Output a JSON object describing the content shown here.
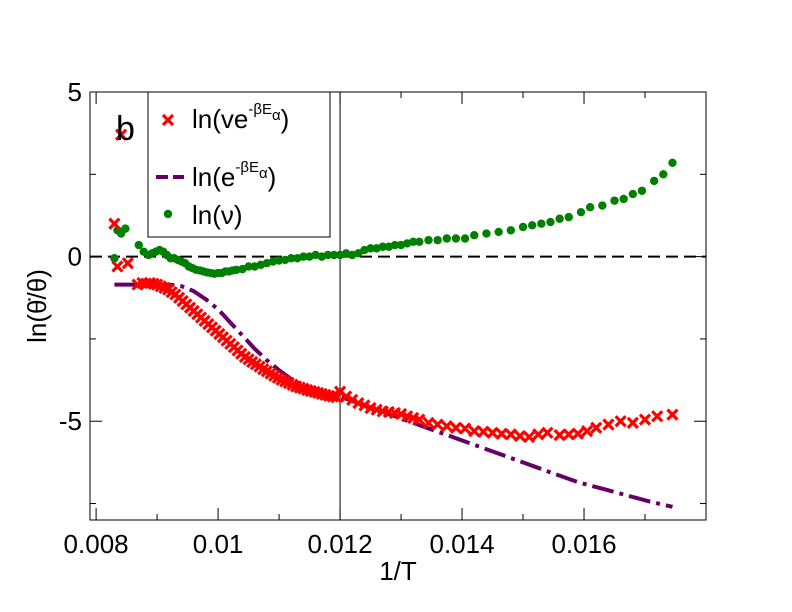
{
  "chart_data": {
    "type": "scatter",
    "panel_label": "b",
    "xlabel": "1/T",
    "ylabel": "ln(θ̇/θ)",
    "xlim": [
      0.0079,
      0.018
    ],
    "ylim": [
      -8,
      5
    ],
    "xticks": [
      0.008,
      0.01,
      0.012,
      0.014,
      0.016
    ],
    "xtick_labels": [
      "0.008",
      "0.01",
      "0.012",
      "0.014",
      "0.016"
    ],
    "yticks": [
      -5,
      0,
      5
    ],
    "ytick_labels": [
      "-5",
      "0",
      "5"
    ],
    "reference_lines": {
      "horizontal_y": 0,
      "vertical_x": 0.012
    },
    "legend": {
      "placement": "top-left",
      "entries": [
        {
          "series": "ln_nu_exp",
          "prefix": "ln(ve",
          "sup": "-βE",
          "sub": "α",
          "suffix": ")"
        },
        {
          "series": "ln_exp",
          "prefix": "ln(e",
          "sup": "-βE",
          "sub": "α",
          "suffix": ")"
        },
        {
          "series": "ln_nu",
          "prefix": "ln(ν)",
          "sup": "",
          "sub": "",
          "suffix": ""
        }
      ]
    },
    "series": [
      {
        "id": "ln_nu_exp",
        "name": "ln(νe^-βEα)",
        "marker": "x",
        "color": "#ff0000",
        "x": [
          0.0083,
          0.00835,
          0.00841,
          0.00852,
          0.00868,
          0.00876,
          0.00882,
          0.00888,
          0.00894,
          0.009,
          0.00906,
          0.00912,
          0.00918,
          0.00924,
          0.0093,
          0.00936,
          0.00942,
          0.00948,
          0.00954,
          0.0096,
          0.00966,
          0.00972,
          0.00978,
          0.00984,
          0.0099,
          0.00996,
          0.01002,
          0.01008,
          0.01014,
          0.0102,
          0.01026,
          0.01032,
          0.01038,
          0.01044,
          0.0105,
          0.01056,
          0.01062,
          0.01068,
          0.01074,
          0.0108,
          0.01086,
          0.01092,
          0.01098,
          0.01104,
          0.0111,
          0.01116,
          0.01122,
          0.01128,
          0.01134,
          0.0114,
          0.01146,
          0.01152,
          0.01158,
          0.01164,
          0.0117,
          0.01176,
          0.01182,
          0.01188,
          0.01194,
          0.012,
          0.0121,
          0.0122,
          0.0123,
          0.0124,
          0.0125,
          0.0126,
          0.0127,
          0.0128,
          0.0129,
          0.013,
          0.0131,
          0.0132,
          0.0133,
          0.01345,
          0.0136,
          0.01375,
          0.0139,
          0.01405,
          0.0142,
          0.01435,
          0.0145,
          0.01465,
          0.0148,
          0.01495,
          0.0151,
          0.01525,
          0.0154,
          0.0156,
          0.01575,
          0.0159,
          0.01605,
          0.0162,
          0.0164,
          0.0166,
          0.0168,
          0.017,
          0.0172,
          0.01745
        ],
        "y": [
          1.0,
          -0.3,
          3.7,
          -0.2,
          -0.85,
          -0.8,
          -0.82,
          -0.8,
          -0.82,
          -0.85,
          -0.9,
          -0.95,
          -1.0,
          -1.08,
          -1.15,
          -1.25,
          -1.35,
          -1.45,
          -1.55,
          -1.65,
          -1.75,
          -1.85,
          -1.95,
          -2.05,
          -2.15,
          -2.25,
          -2.35,
          -2.45,
          -2.55,
          -2.65,
          -2.75,
          -2.85,
          -2.95,
          -3.05,
          -3.12,
          -3.2,
          -3.27,
          -3.34,
          -3.42,
          -3.48,
          -3.55,
          -3.62,
          -3.68,
          -3.74,
          -3.79,
          -3.84,
          -3.89,
          -3.94,
          -3.98,
          -4.01,
          -4.05,
          -4.08,
          -4.11,
          -4.14,
          -4.17,
          -4.2,
          -4.23,
          -4.25,
          -4.27,
          -4.1,
          -4.25,
          -4.35,
          -4.45,
          -4.52,
          -4.6,
          -4.65,
          -4.7,
          -4.72,
          -4.75,
          -4.78,
          -4.85,
          -4.9,
          -4.95,
          -5.05,
          -5.1,
          -5.15,
          -5.2,
          -5.22,
          -5.3,
          -5.32,
          -5.35,
          -5.38,
          -5.4,
          -5.45,
          -5.48,
          -5.4,
          -5.35,
          -5.42,
          -5.4,
          -5.38,
          -5.3,
          -5.2,
          -5.1,
          -5.0,
          -5.05,
          -4.95,
          -4.85,
          -4.8
        ]
      },
      {
        "id": "ln_exp",
        "name": "ln(e^-βEα)",
        "marker": "dash-dot line",
        "color": "#660066",
        "x": [
          0.0083,
          0.0085,
          0.0087,
          0.0088,
          0.009,
          0.0092,
          0.0094,
          0.0096,
          0.0098,
          0.01,
          0.0102,
          0.0104,
          0.0106,
          0.0108,
          0.011,
          0.0112,
          0.0114,
          0.0116,
          0.0118,
          0.012,
          0.0123,
          0.0126,
          0.0129,
          0.0132,
          0.0135,
          0.0138,
          0.0141,
          0.0144,
          0.0147,
          0.015,
          0.0153,
          0.0156,
          0.0159,
          0.0162,
          0.0165,
          0.0168,
          0.0171,
          0.01745
        ],
        "y": [
          -0.85,
          -0.85,
          -0.85,
          -0.85,
          -0.85,
          -0.85,
          -0.9,
          -1.05,
          -1.3,
          -1.6,
          -2.0,
          -2.4,
          -2.8,
          -3.15,
          -3.45,
          -3.72,
          -3.93,
          -4.05,
          -4.15,
          -4.25,
          -4.45,
          -4.65,
          -4.85,
          -5.05,
          -5.25,
          -5.45,
          -5.65,
          -5.85,
          -6.05,
          -6.25,
          -6.45,
          -6.65,
          -6.85,
          -7.0,
          -7.15,
          -7.3,
          -7.45,
          -7.6
        ]
      },
      {
        "id": "ln_nu",
        "name": "ln(ν)",
        "marker": "circle",
        "color": "#008000",
        "x": [
          0.0083,
          0.00835,
          0.00841,
          0.00848,
          0.0087,
          0.00878,
          0.00886,
          0.00892,
          0.00898,
          0.00904,
          0.0091,
          0.00916,
          0.00922,
          0.00928,
          0.00934,
          0.0094,
          0.00946,
          0.00952,
          0.00958,
          0.00964,
          0.0097,
          0.00976,
          0.00982,
          0.00988,
          0.00994,
          0.01,
          0.01006,
          0.01012,
          0.01018,
          0.01024,
          0.0103,
          0.0104,
          0.0105,
          0.0106,
          0.0107,
          0.0108,
          0.0109,
          0.011,
          0.0111,
          0.0112,
          0.0113,
          0.0114,
          0.0115,
          0.0116,
          0.0117,
          0.0118,
          0.0119,
          0.012,
          0.0121,
          0.0122,
          0.0123,
          0.0124,
          0.0125,
          0.0126,
          0.0127,
          0.0128,
          0.0129,
          0.013,
          0.0131,
          0.0132,
          0.0133,
          0.01345,
          0.0136,
          0.01375,
          0.0139,
          0.01405,
          0.0142,
          0.0144,
          0.0146,
          0.0148,
          0.015,
          0.01515,
          0.0153,
          0.01545,
          0.0156,
          0.01575,
          0.01595,
          0.0161,
          0.0163,
          0.0165,
          0.01665,
          0.0168,
          0.01695,
          0.01715,
          0.0173,
          0.01745
        ],
        "y": [
          -0.05,
          0.8,
          0.7,
          0.85,
          0.35,
          0.15,
          0.05,
          0.1,
          0.15,
          0.2,
          0.15,
          0.05,
          -0.05,
          -0.05,
          -0.1,
          -0.15,
          -0.2,
          -0.3,
          -0.35,
          -0.4,
          -0.42,
          -0.45,
          -0.48,
          -0.5,
          -0.52,
          -0.5,
          -0.5,
          -0.45,
          -0.45,
          -0.42,
          -0.4,
          -0.38,
          -0.3,
          -0.3,
          -0.25,
          -0.2,
          -0.15,
          -0.12,
          -0.1,
          -0.05,
          -0.05,
          0.0,
          0.0,
          0.05,
          0.0,
          0.05,
          0.05,
          0.05,
          0.1,
          0.05,
          0.1,
          0.2,
          0.25,
          0.25,
          0.3,
          0.3,
          0.35,
          0.35,
          0.4,
          0.45,
          0.45,
          0.5,
          0.5,
          0.55,
          0.55,
          0.55,
          0.65,
          0.7,
          0.75,
          0.8,
          0.9,
          0.95,
          1.0,
          1.05,
          1.15,
          1.2,
          1.35,
          1.5,
          1.55,
          1.7,
          1.75,
          1.9,
          2.0,
          2.3,
          2.5,
          2.85
        ]
      }
    ]
  }
}
